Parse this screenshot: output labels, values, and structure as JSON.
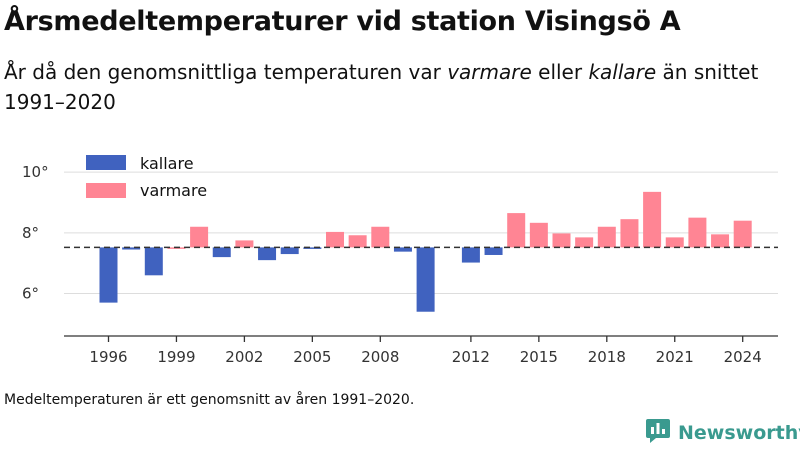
{
  "title": "Årsmedeltemperaturer vid station Visingsö A",
  "subtitle": {
    "before": "År då den genomsnittliga temperaturen var ",
    "warm_word": "varmare",
    "middle": " eller ",
    "cold_word": "kallare",
    "after": " än snittet 1991–2020"
  },
  "footnote": "Medeltemperaturen är ett genomsnitt av åren 1991–2020.",
  "brand": {
    "name": "Newsworthy",
    "icon": "newsworthy-logo-icon",
    "color": "#3a9a8f"
  },
  "colors": {
    "kallare": "#4062bf",
    "varmare": "#ff8594",
    "baseline": "#333333",
    "grid": "#dddddd"
  },
  "chart_data": {
    "type": "bar",
    "baseline": 7.52,
    "ylim": [
      4.6,
      10.4
    ],
    "yticks": [
      6,
      8,
      10
    ],
    "ytick_labels": [
      "6°",
      "8°",
      "10°"
    ],
    "xticks": [
      1996,
      1999,
      2002,
      2005,
      2008,
      2012,
      2015,
      2018,
      2021,
      2024
    ],
    "legend": [
      {
        "name": "kallare",
        "color": "#4062bf"
      },
      {
        "name": "varmare",
        "color": "#ff8594"
      }
    ],
    "legend_position": "top-left",
    "years": [
      1996,
      1997,
      1998,
      1999,
      2000,
      2001,
      2002,
      2003,
      2004,
      2005,
      2006,
      2007,
      2008,
      2009,
      2010,
      2011,
      2012,
      2013,
      2014,
      2015,
      2016,
      2017,
      2018,
      2019,
      2020,
      2021,
      2022,
      2023,
      2024
    ],
    "values": [
      5.7,
      7.45,
      6.6,
      7.52,
      8.2,
      7.2,
      7.75,
      7.1,
      7.3,
      7.47,
      8.03,
      7.92,
      8.2,
      7.38,
      5.4,
      null,
      7.02,
      7.27,
      8.65,
      8.33,
      7.98,
      7.85,
      8.2,
      8.45,
      9.35,
      7.85,
      8.5,
      7.95,
      8.4
    ]
  }
}
